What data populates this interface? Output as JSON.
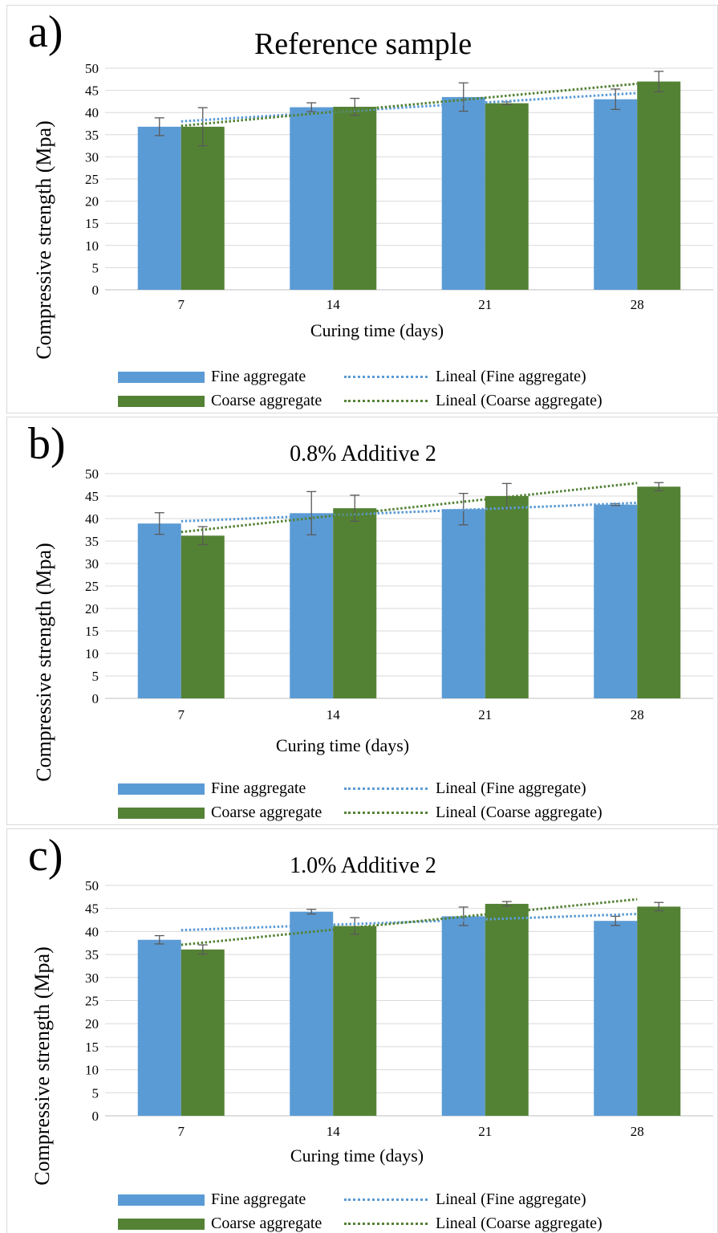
{
  "legend": {
    "fine": "Fine aggregate",
    "coarse": "Coarse aggregate",
    "fine_trend": "Lineal (Fine aggregate)",
    "coarse_trend": "Lineal (Coarse aggregate)"
  },
  "colors": {
    "fine": "#5b9bd5",
    "coarse": "#548235",
    "grid": "#d9d9d9",
    "error_bar": "#595959"
  },
  "chart_data": [
    {
      "type": "bar",
      "panel": "a)",
      "title": "Reference sample",
      "xlabel": "Curing time (days)",
      "ylabel": "Compressive strength (Mpa)",
      "categories": [
        "7",
        "14",
        "21",
        "28"
      ],
      "ylim": [
        0,
        50
      ],
      "yticks": [
        0,
        5,
        10,
        15,
        20,
        25,
        30,
        35,
        40,
        45,
        50
      ],
      "grid": true,
      "legend_position": "bottom",
      "series": [
        {
          "name": "Fine aggregate",
          "values": [
            36.8,
            41.2,
            43.5,
            43.0
          ],
          "errors": [
            2.0,
            1.0,
            3.2,
            2.3
          ]
        },
        {
          "name": "Coarse aggregate",
          "values": [
            36.8,
            41.3,
            42.1,
            47.0
          ],
          "errors": [
            4.3,
            1.9,
            0.3,
            2.3
          ]
        }
      ],
      "trendlines": [
        {
          "name": "Lineal (Fine aggregate)",
          "start": 38.0,
          "end": 44.4
        },
        {
          "name": "Lineal (Coarse aggregate)",
          "start": 37.0,
          "end": 46.5
        }
      ]
    },
    {
      "type": "bar",
      "panel": "b)",
      "title": "0.8% Additive 2",
      "xlabel": "Curing time (days)",
      "ylabel": "Compressive strength (Mpa)",
      "categories": [
        "7",
        "14",
        "21",
        "28"
      ],
      "ylim": [
        0,
        50
      ],
      "yticks": [
        0,
        5,
        10,
        15,
        20,
        25,
        30,
        35,
        40,
        45,
        50
      ],
      "grid": true,
      "legend_position": "bottom",
      "series": [
        {
          "name": "Fine aggregate",
          "values": [
            38.9,
            41.2,
            42.1,
            43.1
          ],
          "errors": [
            2.4,
            4.8,
            3.5,
            0.2
          ]
        },
        {
          "name": "Coarse aggregate",
          "values": [
            36.2,
            42.3,
            45.0,
            47.1
          ],
          "errors": [
            2.0,
            2.9,
            2.8,
            0.9
          ]
        }
      ],
      "trendlines": [
        {
          "name": "Lineal (Fine aggregate)",
          "start": 39.4,
          "end": 43.5
        },
        {
          "name": "Lineal (Coarse aggregate)",
          "start": 37.0,
          "end": 47.9
        }
      ]
    },
    {
      "type": "bar",
      "panel": "c)",
      "title": "1.0% Additive 2",
      "xlabel": "Curing time (days)",
      "ylabel": "Compressive strength (Mpa)",
      "categories": [
        "7",
        "14",
        "21",
        "28"
      ],
      "ylim": [
        0,
        50
      ],
      "yticks": [
        0,
        5,
        10,
        15,
        20,
        25,
        30,
        35,
        40,
        45,
        50
      ],
      "grid": true,
      "legend_position": "bottom",
      "series": [
        {
          "name": "Fine aggregate",
          "values": [
            38.2,
            44.3,
            43.3,
            42.3
          ],
          "errors": [
            0.9,
            0.5,
            2.0,
            1.0
          ]
        },
        {
          "name": "Coarse aggregate",
          "values": [
            36.1,
            41.2,
            46.0,
            45.4
          ],
          "errors": [
            1.0,
            1.8,
            0.5,
            0.9
          ]
        }
      ],
      "trendlines": [
        {
          "name": "Lineal (Fine aggregate)",
          "start": 40.3,
          "end": 43.8
        },
        {
          "name": "Lineal (Coarse aggregate)",
          "start": 37.1,
          "end": 47.0
        }
      ]
    }
  ]
}
